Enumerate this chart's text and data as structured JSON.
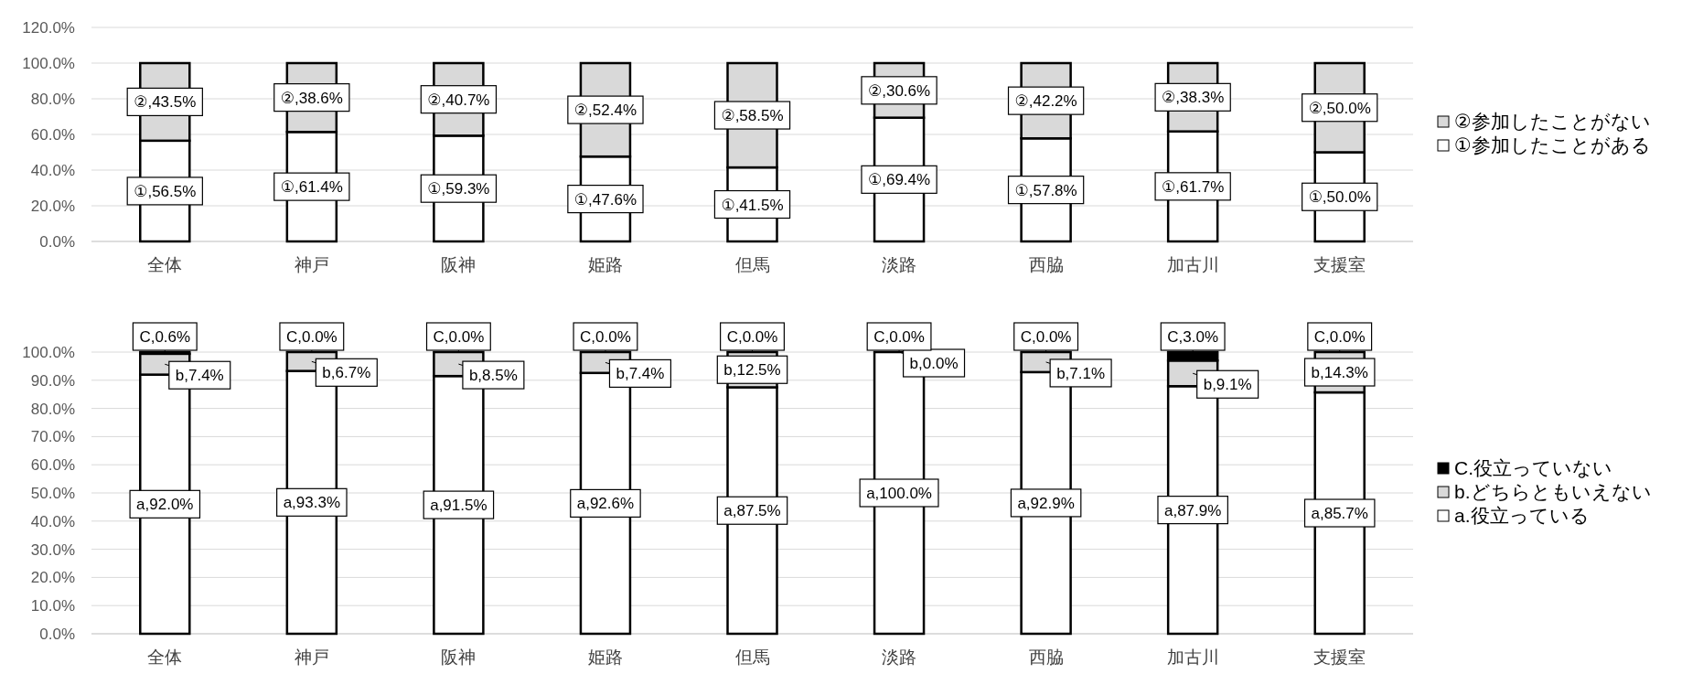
{
  "chart_data": [
    {
      "type": "bar",
      "stacked": true,
      "categories": [
        "全体",
        "神戸",
        "阪神",
        "姫路",
        "但馬",
        "淡路",
        "西脇",
        "加古川",
        "支援室"
      ],
      "series": [
        {
          "name": "①参加したことがある",
          "color": "#ffffff",
          "values": [
            56.5,
            61.4,
            59.3,
            47.6,
            41.5,
            69.4,
            57.8,
            61.7,
            50.0
          ],
          "value_labels": [
            "①,56.5%",
            "①,61.4%",
            "①,59.3%",
            "①,47.6%",
            "①,41.5%",
            "①,69.4%",
            "①,57.8%",
            "①,61.7%",
            "①,50.0%"
          ]
        },
        {
          "name": "②参加したことがない",
          "color": "#d9d9d9",
          "values": [
            43.5,
            38.6,
            40.7,
            52.4,
            58.5,
            30.6,
            42.2,
            38.3,
            50.0
          ],
          "value_labels": [
            "②,43.5%",
            "②,38.6%",
            "②,40.7%",
            "②,52.4%",
            "②,58.5%",
            "②,30.6%",
            "②,42.2%",
            "②,38.3%",
            "②,50.0%"
          ]
        }
      ],
      "ylim": [
        0,
        120
      ],
      "yticks": [
        {
          "value": 0,
          "label": "0.0%"
        },
        {
          "value": 20,
          "label": "20.0%"
        },
        {
          "value": 40,
          "label": "40.0%"
        },
        {
          "value": 60,
          "label": "60.0%"
        },
        {
          "value": 80,
          "label": "80.0%"
        },
        {
          "value": 100,
          "label": "100.0%"
        },
        {
          "value": 120,
          "label": "120.0%"
        }
      ],
      "grid": "y",
      "legend": "right"
    },
    {
      "type": "bar",
      "stacked": true,
      "categories": [
        "全体",
        "神戸",
        "阪神",
        "姫路",
        "但馬",
        "淡路",
        "西脇",
        "加古川",
        "支援室"
      ],
      "series": [
        {
          "name": "a.役立っている",
          "color": "#ffffff",
          "values": [
            92.0,
            93.3,
            91.5,
            92.6,
            87.5,
            100.0,
            92.9,
            87.9,
            85.7
          ],
          "value_labels": [
            "a,92.0%",
            "a,93.3%",
            "a,91.5%",
            "a,92.6%",
            "a,87.5%",
            "a,100.0%",
            "a,92.9%",
            "a,87.9%",
            "a,85.7%"
          ]
        },
        {
          "name": "b.どちらともいえない",
          "color": "#d9d9d9",
          "values": [
            7.4,
            6.7,
            8.5,
            7.4,
            12.5,
            0.0,
            7.1,
            9.1,
            14.3
          ],
          "value_labels": [
            "b,7.4%",
            "b,6.7%",
            "b,8.5%",
            "b,7.4%",
            "b,12.5%",
            "b,0.0%",
            "b,7.1%",
            "b,9.1%",
            "b,14.3%"
          ]
        },
        {
          "name": "C.役立っていない",
          "color": "#000000",
          "values": [
            0.6,
            0.0,
            0.0,
            0.0,
            0.0,
            0.0,
            0.0,
            3.0,
            0.0
          ],
          "value_labels": [
            "C,0.6%",
            "C,0.0%",
            "C,0.0%",
            "C,0.0%",
            "C,0.0%",
            "C,0.0%",
            "C,0.0%",
            "C,3.0%",
            "C,0.0%"
          ]
        }
      ],
      "ylim": [
        0,
        100
      ],
      "yticks": [
        {
          "value": 0,
          "label": "0.0%"
        },
        {
          "value": 10,
          "label": "10.0%"
        },
        {
          "value": 20,
          "label": "20.0%"
        },
        {
          "value": 30,
          "label": "30.0%"
        },
        {
          "value": 40,
          "label": "40.0%"
        },
        {
          "value": 50,
          "label": "50.0%"
        },
        {
          "value": 60,
          "label": "60.0%"
        },
        {
          "value": 70,
          "label": "70.0%"
        },
        {
          "value": 80,
          "label": "80.0%"
        },
        {
          "value": 90,
          "label": "90.0%"
        },
        {
          "value": 100,
          "label": "100.0%"
        }
      ],
      "grid": "y",
      "legend": "right"
    }
  ]
}
